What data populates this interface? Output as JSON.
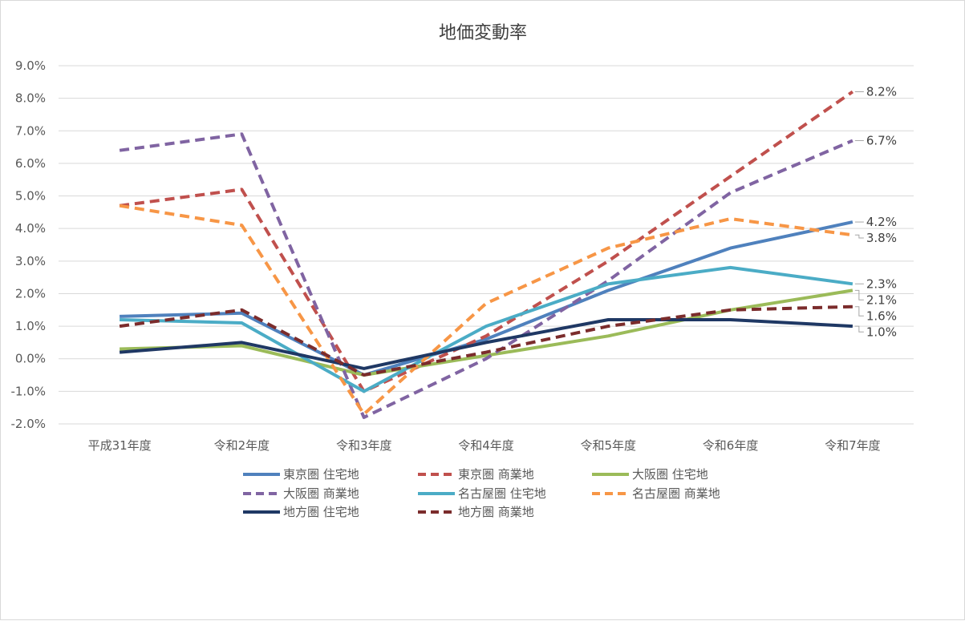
{
  "chart_data": {
    "type": "line",
    "title": "地価変動率",
    "xlabel": "",
    "ylabel": "",
    "categories": [
      "平成31年度",
      "令和2年度",
      "令和3年度",
      "令和4年度",
      "令和5年度",
      "令和6年度",
      "令和7年度"
    ],
    "ylim": [
      -2.0,
      9.0
    ],
    "y_ticks": [
      "9.0%",
      "8.0%",
      "7.0%",
      "6.0%",
      "5.0%",
      "4.0%",
      "3.0%",
      "2.0%",
      "1.0%",
      "0.0%",
      "-1.0%",
      "-2.0%"
    ],
    "grid": true,
    "legend_position": "bottom",
    "series": [
      {
        "name": "東京圏 住宅地",
        "color": "#4f81bd",
        "dash": false,
        "values": [
          1.3,
          1.4,
          -0.5,
          0.6,
          2.1,
          3.4,
          4.2
        ],
        "end_label": "4.2%"
      },
      {
        "name": "東京圏 商業地",
        "color": "#c0504d",
        "dash": true,
        "values": [
          4.7,
          5.2,
          -1.0,
          0.7,
          3.0,
          5.6,
          8.2
        ],
        "end_label": "8.2%"
      },
      {
        "name": "大阪圏 住宅地",
        "color": "#9bbb59",
        "dash": false,
        "values": [
          0.3,
          0.4,
          -0.5,
          0.1,
          0.7,
          1.5,
          2.1
        ],
        "end_label": "2.1%"
      },
      {
        "name": "大阪圏 商業地",
        "color": "#8064a2",
        "dash": true,
        "values": [
          6.4,
          6.9,
          -1.8,
          0.0,
          2.4,
          5.1,
          6.7
        ],
        "end_label": "6.7%"
      },
      {
        "name": "名古屋圏 住宅地",
        "color": "#4bacc6",
        "dash": false,
        "values": [
          1.2,
          1.1,
          -1.0,
          1.0,
          2.3,
          2.8,
          2.3
        ],
        "end_label": "2.3%"
      },
      {
        "name": "名古屋圏 商業地",
        "color": "#f79646",
        "dash": true,
        "values": [
          4.7,
          4.1,
          -1.7,
          1.7,
          3.4,
          4.3,
          3.8
        ],
        "end_label": "3.8%"
      },
      {
        "name": "地方圏 住宅地",
        "color": "#1f3864",
        "dash": false,
        "values": [
          0.2,
          0.5,
          -0.3,
          0.5,
          1.2,
          1.2,
          1.0
        ],
        "end_label": "1.0%"
      },
      {
        "name": "地方圏 商業地",
        "color": "#7b2c2c",
        "dash": true,
        "values": [
          1.0,
          1.5,
          -0.5,
          0.2,
          1.0,
          1.5,
          1.6
        ],
        "end_label": "1.6%"
      }
    ]
  }
}
